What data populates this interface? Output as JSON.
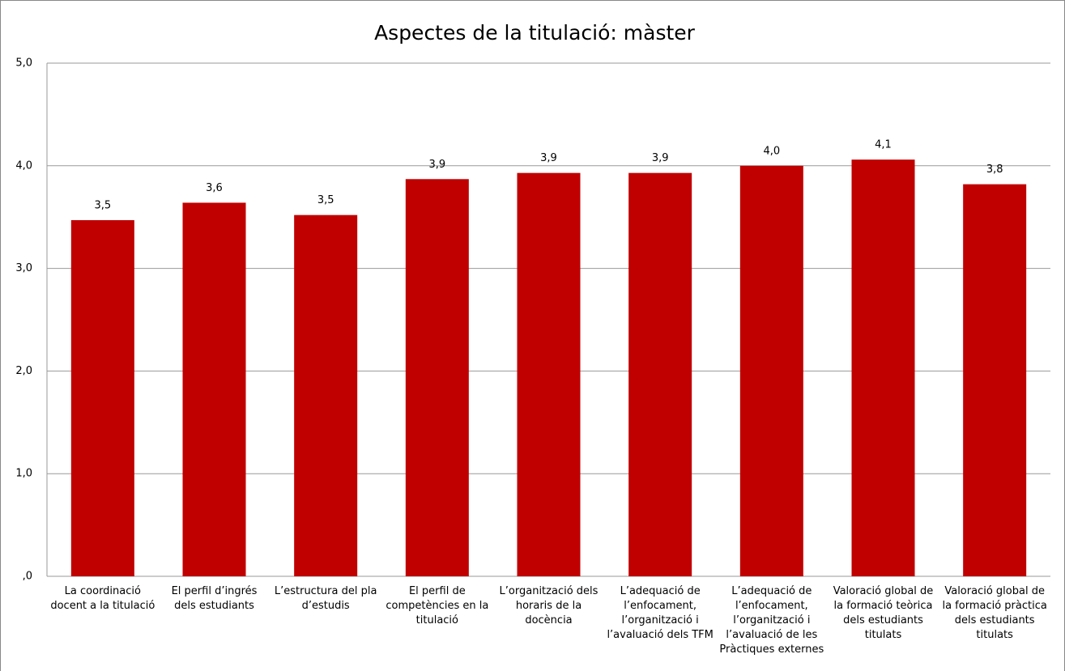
{
  "chart_data": {
    "type": "bar",
    "title": "Aspectes de la titulació: màster",
    "categories": [
      "La coordinació docent a la titulació",
      "El perfil d’ingrés dels estudiants",
      "L’estructura del pla d’estudis",
      "El perfil de competències en la titulació",
      "L’organització dels horaris de la docència",
      "L’adequació de l’enfocament, l’organització i l’avaluació dels TFM",
      "L’adequació de l’enfocament, l’organització i l’avaluació de les Pràctiques externes",
      "Valoració global de la formació teòrica dels estudiants titulats",
      "Valoració global de la formació pràctica dels estudiants titulats"
    ],
    "values": [
      3.47,
      3.64,
      3.52,
      3.87,
      3.93,
      3.93,
      4.0,
      4.06,
      3.82
    ],
    "value_labels": [
      "3,5",
      "3,6",
      "3,5",
      "3,9",
      "3,9",
      "3,9",
      "4,0",
      "4,1",
      "3,8"
    ],
    "color": "#c00000",
    "ylim": [
      0,
      5
    ],
    "yticks": [
      {
        "value": 0,
        "label": ",0"
      },
      {
        "value": 1,
        "label": "1,0"
      },
      {
        "value": 2,
        "label": "2,0"
      },
      {
        "value": 3,
        "label": "3,0"
      },
      {
        "value": 4,
        "label": "4,0"
      },
      {
        "value": 5,
        "label": "5,0"
      }
    ],
    "grid": true
  }
}
